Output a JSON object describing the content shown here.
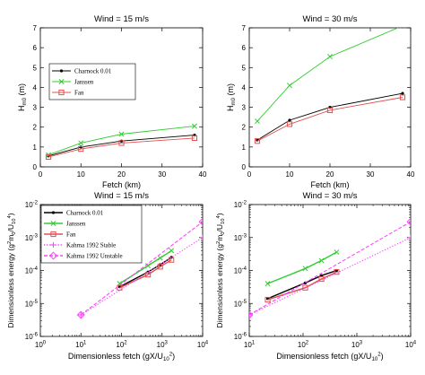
{
  "chart_data": [
    {
      "type": "line",
      "title": "Wind = 15 m/s",
      "xlabel": "Fetch (km)",
      "ylabel": "H_{m0} (m)",
      "xscale": "linear",
      "yscale": "linear",
      "xlim": [
        0,
        40
      ],
      "ylim": [
        0,
        7
      ],
      "xticks": [
        0,
        10,
        20,
        30,
        40
      ],
      "yticks": [
        0,
        1,
        2,
        3,
        4,
        5,
        6,
        7
      ],
      "grid": false,
      "legend": "center-left",
      "series": [
        {
          "name": "Charnock 0.01",
          "color": "#000000",
          "marker": "dot",
          "x": [
            2,
            10,
            20,
            38
          ],
          "y": [
            0.55,
            1.0,
            1.3,
            1.6
          ]
        },
        {
          "name": "Janssen",
          "color": "#33cc33",
          "marker": "x",
          "x": [
            2,
            10,
            20,
            38
          ],
          "y": [
            0.6,
            1.2,
            1.65,
            2.05
          ]
        },
        {
          "name": "Fan",
          "color": "#e05050",
          "marker": "square",
          "x": [
            2,
            10,
            20,
            38
          ],
          "y": [
            0.5,
            0.9,
            1.2,
            1.45
          ]
        }
      ]
    },
    {
      "type": "line",
      "title": "Wind = 30 m/s",
      "xlabel": "Fetch (km)",
      "ylabel": "H_{m0} (m)",
      "xscale": "linear",
      "yscale": "linear",
      "xlim": [
        0,
        40
      ],
      "ylim": [
        0,
        7
      ],
      "xticks": [
        0,
        10,
        20,
        30,
        40
      ],
      "yticks": [
        0,
        1,
        2,
        3,
        4,
        5,
        6,
        7
      ],
      "grid": false,
      "legend": "none",
      "series": [
        {
          "name": "Charnock 0.01",
          "color": "#000000",
          "marker": "dot",
          "x": [
            2,
            10,
            20,
            38
          ],
          "y": [
            1.35,
            2.35,
            3.0,
            3.7
          ]
        },
        {
          "name": "Janssen",
          "color": "#33cc33",
          "marker": "x",
          "x": [
            2,
            10,
            20,
            38
          ],
          "y": [
            2.3,
            4.1,
            5.55,
            7.1
          ]
        },
        {
          "name": "Fan",
          "color": "#e05050",
          "marker": "square",
          "x": [
            2,
            10,
            20,
            38
          ],
          "y": [
            1.3,
            2.15,
            2.85,
            3.5
          ]
        }
      ]
    },
    {
      "type": "line",
      "title": "Wind = 15 m/s",
      "xlabel": "Dimensionless fetch (gX/U_{10}^{2})",
      "ylabel": "Dimensionless energy (g^{2}m_{0}/U_{10}^{4})",
      "xscale": "log",
      "yscale": "log",
      "xlim": [
        1,
        10000
      ],
      "ylim": [
        1e-06,
        0.01
      ],
      "xticks": [
        1,
        10,
        100,
        1000,
        10000
      ],
      "yticks": [
        1e-06,
        1e-05,
        0.0001,
        0.001,
        0.01
      ],
      "grid": false,
      "legend": "top-left",
      "series": [
        {
          "name": "Charnock 0.01",
          "color": "#000000",
          "marker": "dot",
          "style": "solid",
          "x": [
            90,
            450,
            900,
            1700
          ],
          "y": [
            3.2e-05,
            9e-05,
            0.00015,
            0.00025
          ]
        },
        {
          "name": "Janssen",
          "color": "#33cc33",
          "marker": "x",
          "style": "solid",
          "x": [
            90,
            450,
            900,
            1700
          ],
          "y": [
            4e-05,
            0.00014,
            0.00024,
            0.0004
          ]
        },
        {
          "name": "Fan",
          "color": "#e05050",
          "marker": "square",
          "style": "solid",
          "x": [
            90,
            450,
            900,
            1700
          ],
          "y": [
            3e-05,
            7.5e-05,
            0.00013,
            0.00021
          ]
        },
        {
          "name": "Kahma 1992 Stable",
          "color": "#ff44ff",
          "marker": "plus",
          "style": "dotted",
          "x": [
            10,
            10000
          ],
          "y": [
            4.5e-06,
            0.001
          ]
        },
        {
          "name": "Kahma 1992 Unstable",
          "color": "#ff44ff",
          "marker": "diamond",
          "style": "dashed",
          "x": [
            10,
            10000
          ],
          "y": [
            4.5e-06,
            0.003
          ]
        }
      ]
    },
    {
      "type": "line",
      "title": "Wind = 30 m/s",
      "xlabel": "Dimensionless fetch (gX/U_{10}^{2})",
      "ylabel": "Dimensionless energy (g^{2}m_{0}/U_{10}^{4})",
      "xscale": "log",
      "yscale": "log",
      "xlim": [
        10,
        10000
      ],
      "ylim": [
        1e-06,
        0.01
      ],
      "xticks": [
        10,
        100,
        1000,
        10000
      ],
      "yticks": [
        1e-06,
        1e-05,
        0.0001,
        0.001,
        0.01
      ],
      "grid": false,
      "legend": "none",
      "series": [
        {
          "name": "Charnock 0.01",
          "color": "#000000",
          "marker": "dot",
          "style": "solid",
          "x": [
            22,
            110,
            220,
            420
          ],
          "y": [
            1.4e-05,
            4.2e-05,
            7e-05,
            0.0001
          ]
        },
        {
          "name": "Janssen",
          "color": "#33cc33",
          "marker": "x",
          "style": "solid",
          "x": [
            22,
            110,
            220,
            420
          ],
          "y": [
            4e-05,
            0.000115,
            0.0002,
            0.00036
          ]
        },
        {
          "name": "Fan",
          "color": "#e05050",
          "marker": "square",
          "style": "solid",
          "x": [
            22,
            110,
            220,
            420
          ],
          "y": [
            1.3e-05,
            3e-05,
            5.5e-05,
            9e-05
          ]
        },
        {
          "name": "Kahma 1992 Stable",
          "color": "#ff44ff",
          "marker": "plus",
          "style": "dotted",
          "x": [
            10,
            10000
          ],
          "y": [
            4.5e-06,
            0.001
          ]
        },
        {
          "name": "Kahma 1992 Unstable",
          "color": "#ff44ff",
          "marker": "diamond",
          "style": "dashed",
          "x": [
            10,
            10000
          ],
          "y": [
            4.5e-06,
            0.003
          ]
        }
      ]
    }
  ]
}
